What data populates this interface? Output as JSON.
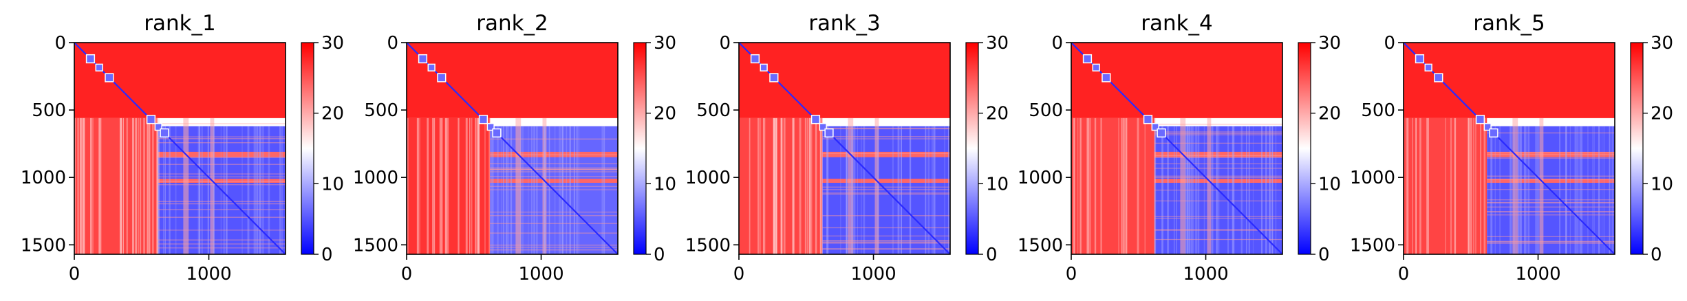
{
  "chart_data": [
    {
      "type": "heatmap",
      "title": "rank_1",
      "xticks": [
        0,
        1000
      ],
      "yticks": [
        0,
        500,
        1000,
        1500
      ],
      "xlim": [
        0,
        1570
      ],
      "ylim": [
        1570,
        0
      ],
      "colorbar": {
        "ticks": [
          0,
          10,
          20,
          30
        ],
        "range": [
          0,
          30
        ],
        "colormap": "bwr"
      },
      "blocks": [
        {
          "rows": [
            0,
            560
          ],
          "cols": [
            0,
            1570
          ],
          "value": 28
        },
        {
          "rows": [
            560,
            1570
          ],
          "cols": [
            0,
            620
          ],
          "value": 26
        },
        {
          "rows": [
            620,
            1570
          ],
          "cols": [
            620,
            1570
          ],
          "value": 5
        },
        {
          "rows": [
            810,
            850
          ],
          "cols": [
            620,
            1570
          ],
          "value": 24
        },
        {
          "rows": [
            1010,
            1040
          ],
          "cols": [
            620,
            1570
          ],
          "value": 24
        }
      ]
    },
    {
      "type": "heatmap",
      "title": "rank_2",
      "xticks": [
        0,
        1000
      ],
      "yticks": [
        0,
        500,
        1000,
        1500
      ],
      "xlim": [
        0,
        1570
      ],
      "ylim": [
        1570,
        0
      ],
      "colorbar": {
        "ticks": [
          0,
          10,
          20,
          30
        ],
        "range": [
          0,
          30
        ],
        "colormap": "bwr"
      },
      "blocks": [
        {
          "rows": [
            0,
            560
          ],
          "cols": [
            0,
            1570
          ],
          "value": 28
        },
        {
          "rows": [
            560,
            1570
          ],
          "cols": [
            0,
            620
          ],
          "value": 27
        },
        {
          "rows": [
            620,
            1570
          ],
          "cols": [
            620,
            1570
          ],
          "value": 6
        },
        {
          "rows": [
            810,
            850
          ],
          "cols": [
            620,
            1570
          ],
          "value": 24
        },
        {
          "rows": [
            1010,
            1040
          ],
          "cols": [
            620,
            1570
          ],
          "value": 24
        }
      ]
    },
    {
      "type": "heatmap",
      "title": "rank_3",
      "xticks": [
        0,
        1000
      ],
      "yticks": [
        0,
        500,
        1000,
        1500
      ],
      "xlim": [
        0,
        1570
      ],
      "ylim": [
        1570,
        0
      ],
      "colorbar": {
        "ticks": [
          0,
          10,
          20,
          30
        ],
        "range": [
          0,
          30
        ],
        "colormap": "bwr"
      },
      "blocks": [
        {
          "rows": [
            0,
            560
          ],
          "cols": [
            0,
            1570
          ],
          "value": 28
        },
        {
          "rows": [
            560,
            1570
          ],
          "cols": [
            0,
            620
          ],
          "value": 26
        },
        {
          "rows": [
            620,
            1570
          ],
          "cols": [
            620,
            1570
          ],
          "value": 5
        },
        {
          "rows": [
            810,
            850
          ],
          "cols": [
            620,
            1570
          ],
          "value": 24
        },
        {
          "rows": [
            1010,
            1040
          ],
          "cols": [
            620,
            1570
          ],
          "value": 24
        }
      ]
    },
    {
      "type": "heatmap",
      "title": "rank_4",
      "xticks": [
        0,
        1000
      ],
      "yticks": [
        0,
        500,
        1000,
        1500
      ],
      "xlim": [
        0,
        1570
      ],
      "ylim": [
        1570,
        0
      ],
      "colorbar": {
        "ticks": [
          0,
          10,
          20,
          30
        ],
        "range": [
          0,
          30
        ],
        "colormap": "bwr"
      },
      "blocks": [
        {
          "rows": [
            0,
            560
          ],
          "cols": [
            0,
            1570
          ],
          "value": 28
        },
        {
          "rows": [
            560,
            1570
          ],
          "cols": [
            0,
            620
          ],
          "value": 26
        },
        {
          "rows": [
            620,
            1570
          ],
          "cols": [
            620,
            1570
          ],
          "value": 5
        },
        {
          "rows": [
            810,
            850
          ],
          "cols": [
            620,
            1570
          ],
          "value": 24
        },
        {
          "rows": [
            1010,
            1040
          ],
          "cols": [
            620,
            1570
          ],
          "value": 24
        }
      ]
    },
    {
      "type": "heatmap",
      "title": "rank_5",
      "xticks": [
        0,
        1000
      ],
      "yticks": [
        0,
        500,
        1000,
        1500
      ],
      "xlim": [
        0,
        1570
      ],
      "ylim": [
        1570,
        0
      ],
      "colorbar": {
        "ticks": [
          0,
          10,
          20,
          30
        ],
        "range": [
          0,
          30
        ],
        "colormap": "bwr"
      },
      "blocks": [
        {
          "rows": [
            0,
            560
          ],
          "cols": [
            0,
            1570
          ],
          "value": 28
        },
        {
          "rows": [
            560,
            1570
          ],
          "cols": [
            0,
            620
          ],
          "value": 26
        },
        {
          "rows": [
            620,
            1570
          ],
          "cols": [
            620,
            1570
          ],
          "value": 5
        },
        {
          "rows": [
            810,
            850
          ],
          "cols": [
            620,
            1570
          ],
          "value": 24
        },
        {
          "rows": [
            1010,
            1040
          ],
          "cols": [
            620,
            1570
          ],
          "value": 24
        }
      ]
    }
  ]
}
